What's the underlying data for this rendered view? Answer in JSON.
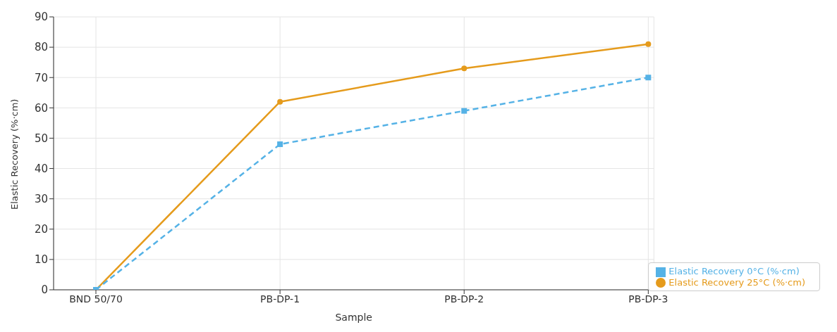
{
  "chart_data": {
    "type": "line",
    "xlabel": "Sample",
    "ylabel": "Elastic Recovery (%·cm)",
    "categories": [
      "BND 50/70",
      "PB-DP-1",
      "PB-DP-2",
      "PB-DP-3"
    ],
    "series": [
      {
        "name": "Elastic Recovery 25°C (%·cm)",
        "color": "#e59b1c",
        "values": [
          0,
          62,
          73,
          81
        ],
        "marker": "circle",
        "line_style": "solid"
      },
      {
        "name": "Elastic Recovery 0°C (%·cm)",
        "color": "#55b2e6",
        "values": [
          0,
          48,
          59,
          70
        ],
        "marker": "square",
        "line_style": "dashed"
      }
    ],
    "ylim": [
      0,
      90
    ],
    "yticks": [
      0,
      10,
      20,
      30,
      40,
      50,
      60,
      70,
      80,
      90
    ],
    "grid": true,
    "legend": "bottom right"
  }
}
